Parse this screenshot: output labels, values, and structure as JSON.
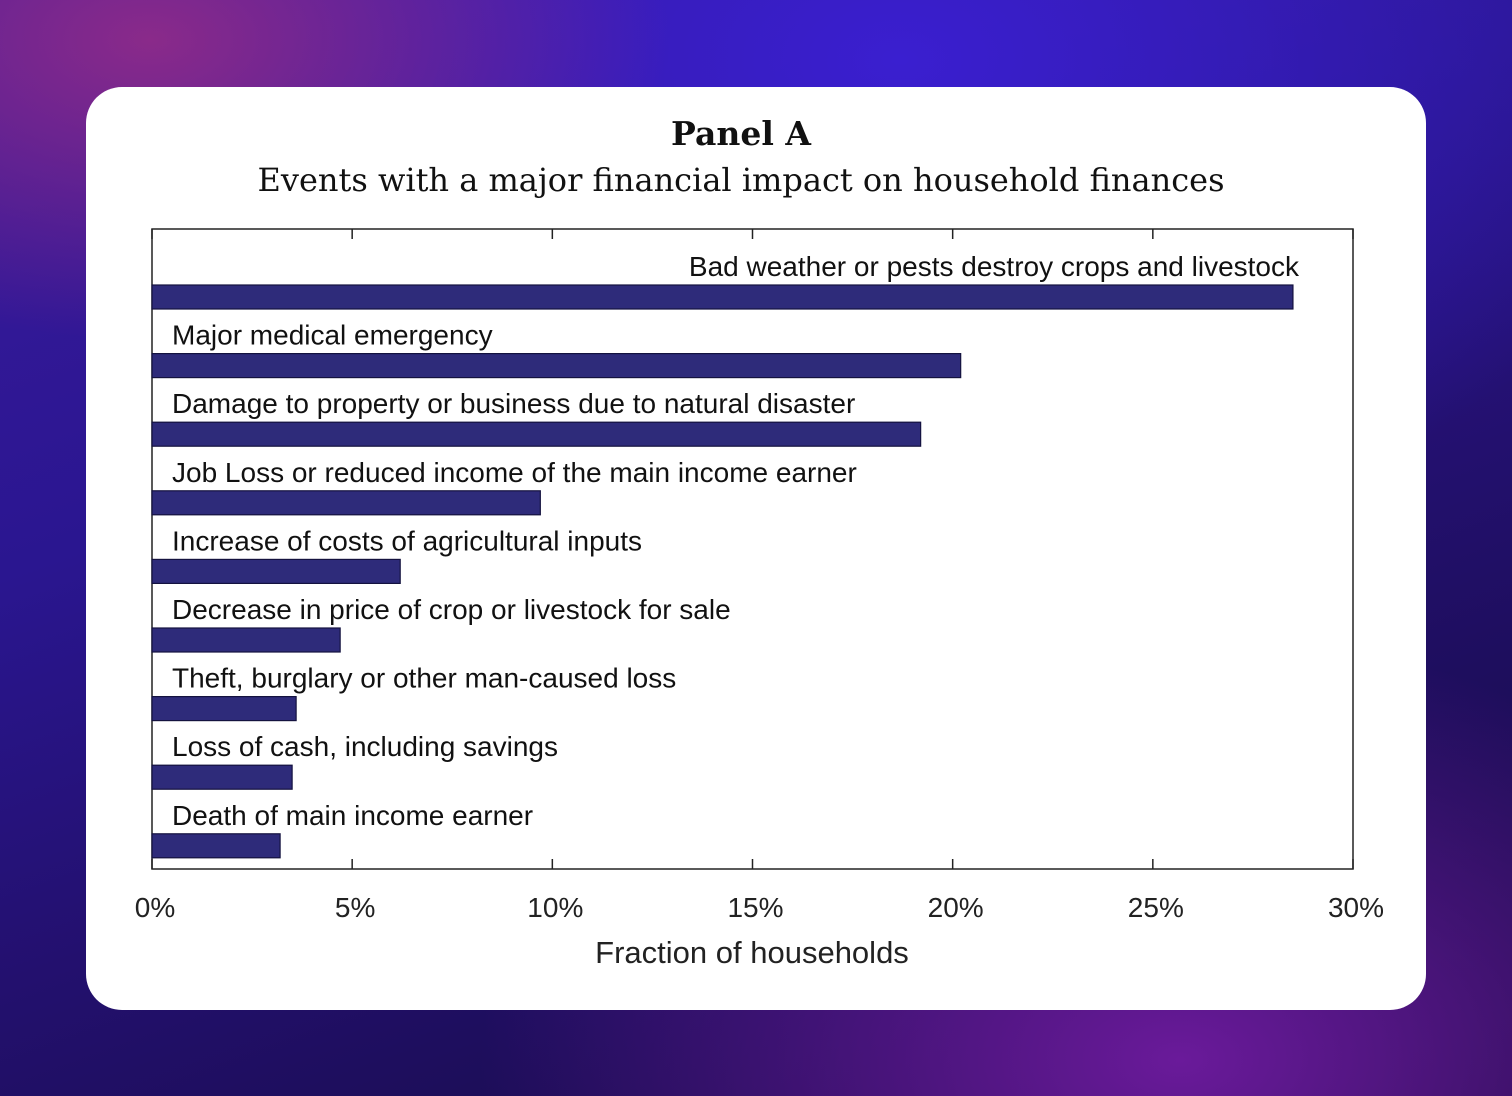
{
  "header": {
    "title": "Panel A",
    "subtitle": "Events with a major financial impact on household finances"
  },
  "colors": {
    "bar_fill": "#2e2b7a",
    "bar_stroke": "#14123f",
    "axis": "#222222"
  },
  "chart_data": {
    "type": "bar",
    "orientation": "horizontal",
    "title": "Panel A",
    "subtitle": "Events with a major financial impact on household finances",
    "xlabel": "Fraction of households",
    "ylabel": "",
    "xlim": [
      0,
      30
    ],
    "xticks": [
      0,
      5,
      10,
      15,
      20,
      25,
      30
    ],
    "xtick_labels": [
      "0%",
      "5%",
      "10%",
      "15%",
      "20%",
      "25%",
      "30%"
    ],
    "grid": false,
    "legend": "none",
    "categories": [
      "Bad weather or pests destroy crops and livestock",
      "Major medical emergency",
      "Damage to property or business due to natural disaster",
      "Job Loss or reduced income of the main income earner",
      "Increase of costs of agricultural inputs",
      "Decrease in price of crop or livestock for sale",
      "Theft, burglary or other man-caused loss",
      "Loss of cash, including savings",
      "Death of main income earner"
    ],
    "values": [
      28.5,
      20.2,
      19.2,
      9.7,
      6.2,
      4.7,
      3.6,
      3.5,
      3.2
    ]
  }
}
